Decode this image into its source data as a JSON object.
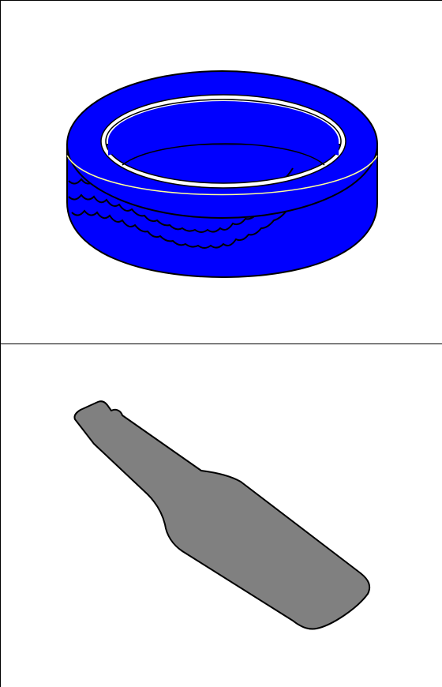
{
  "panels": [
    {
      "id": "top",
      "item": "tire",
      "colors": {
        "fill": "#0000ff",
        "outline": "#000000",
        "rim": "#ffffff",
        "highlight": "#ffff99"
      }
    },
    {
      "id": "bottom",
      "item": "bottle",
      "colors": {
        "fill": "#808080",
        "outline": "#000000"
      }
    }
  ],
  "icons": [
    "tire-icon",
    "bottle-icon"
  ]
}
